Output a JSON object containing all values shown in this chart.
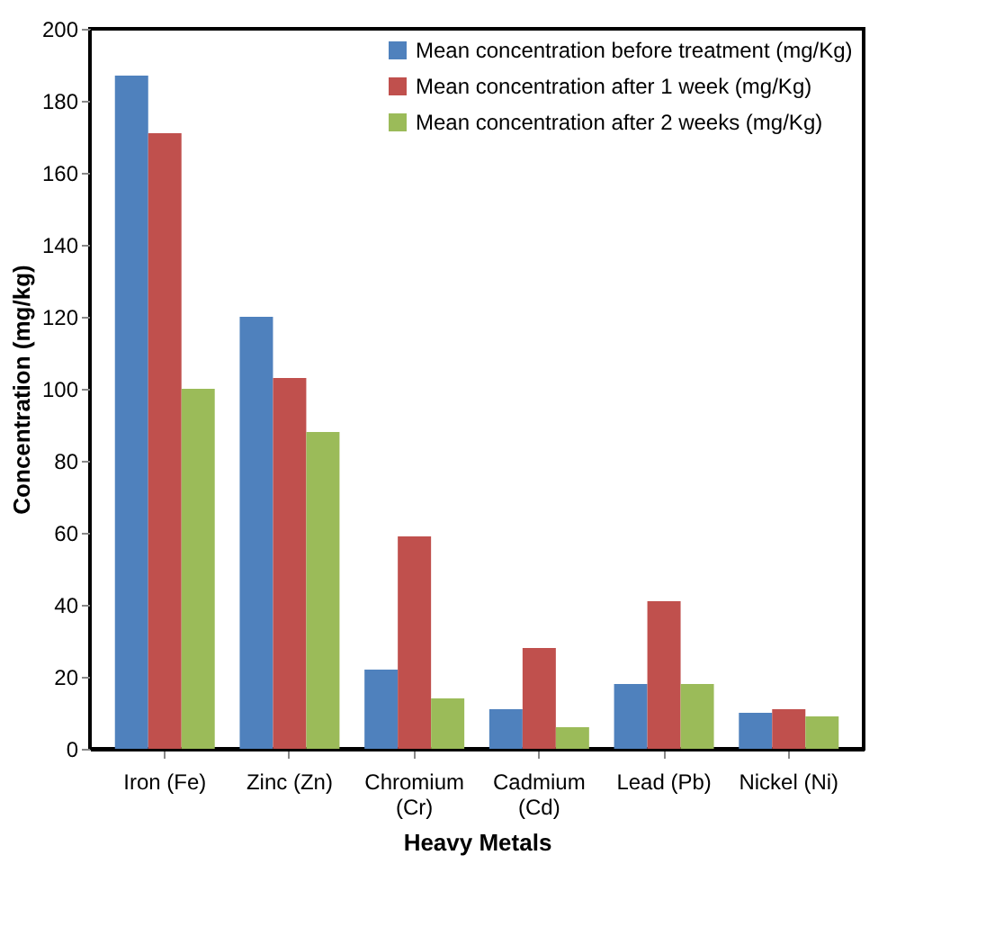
{
  "chart_data": {
    "type": "bar",
    "xlabel": "Heavy Metals",
    "ylabel": "Concentration (mg/kg)",
    "categories": [
      "Iron (Fe)",
      "Zinc (Zn)",
      "Chromium (Cr)",
      "Cadmium (Cd)",
      "Lead (Pb)",
      "Nickel (Ni)"
    ],
    "series": [
      {
        "name": "Mean concentration before treatment (mg/Kg)",
        "color": "#4f81bd",
        "values": [
          187,
          120,
          22,
          11,
          18,
          10
        ]
      },
      {
        "name": "Mean concentration after 1 week (mg/Kg)",
        "color": "#c0504d",
        "values": [
          171,
          103,
          59,
          28,
          41,
          11
        ]
      },
      {
        "name": "Mean concentration after 2 weeks (mg/Kg)",
        "color": "#9bbb59",
        "values": [
          100,
          88,
          14,
          6,
          18,
          9
        ]
      }
    ],
    "ylim": [
      0,
      200
    ],
    "yticks": [
      0,
      20,
      40,
      60,
      80,
      100,
      120,
      140,
      160,
      180,
      200
    ],
    "grid": false,
    "legend": "top right"
  }
}
